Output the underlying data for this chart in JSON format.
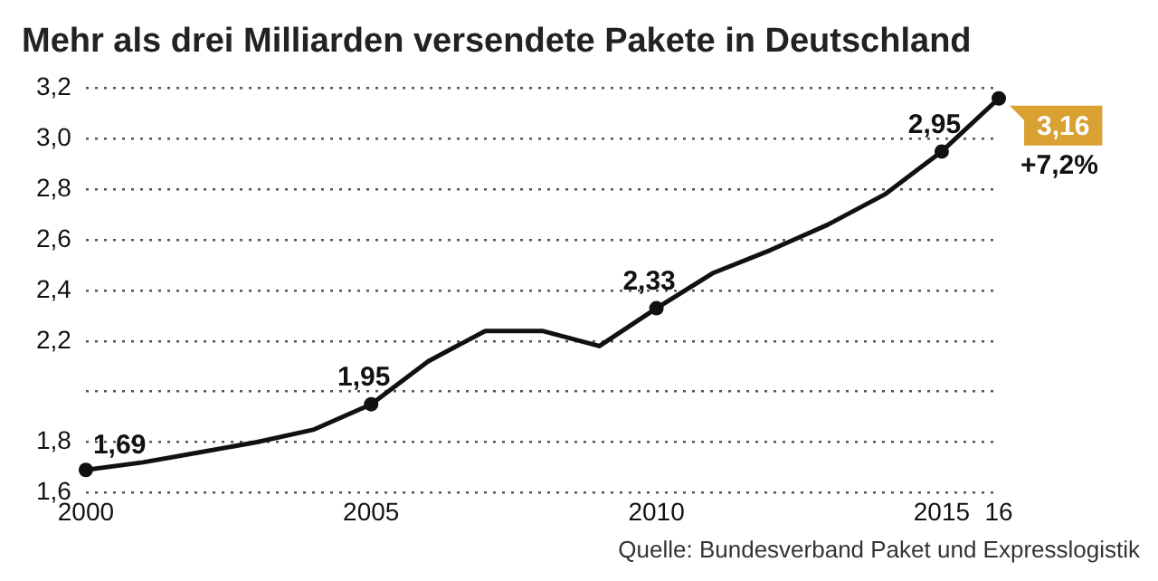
{
  "chart_data": {
    "type": "line",
    "title": "Mehr als drei Milliarden versendete Pakete in Deutschland",
    "x": [
      2000,
      2001,
      2002,
      2003,
      2004,
      2005,
      2006,
      2007,
      2008,
      2009,
      2010,
      2011,
      2012,
      2013,
      2014,
      2015,
      2016
    ],
    "series": [
      {
        "color": "#111111",
        "values": [
          1.69,
          1.72,
          1.76,
          1.8,
          1.85,
          1.95,
          2.12,
          2.24,
          2.24,
          2.18,
          2.33,
          2.47,
          2.56,
          2.66,
          2.78,
          2.95,
          3.16
        ],
        "value_labels": [
          "1,69",
          null,
          null,
          null,
          null,
          "1,95",
          null,
          null,
          null,
          null,
          "2,33",
          null,
          null,
          null,
          null,
          "2,95",
          "3,16"
        ]
      }
    ],
    "xlim": [
      2000,
      2016
    ],
    "xticks": [
      2000,
      2005,
      2010,
      {
        "value": 2015,
        "label": "2015"
      },
      {
        "value": 2016,
        "label": "16"
      }
    ],
    "ylim": [
      1.6,
      3.2
    ],
    "yticks": [
      {
        "value": 1.6,
        "label": "1,6"
      },
      {
        "value": 1.8,
        "label": "1,8"
      },
      {
        "value": 2.0,
        "label": null
      },
      {
        "value": 2.2,
        "label": "2,2"
      },
      {
        "value": 2.4,
        "label": "2,4"
      },
      {
        "value": 2.6,
        "label": "2,6"
      },
      {
        "value": 2.8,
        "label": "2,8"
      },
      {
        "value": 3.0,
        "label": "3,0"
      },
      {
        "value": 3.2,
        "label": "3,2"
      }
    ],
    "grid": "y",
    "legend": false,
    "line_style": "solid",
    "annotations": [
      {
        "text": "+7,2%",
        "x": 2016,
        "y": 3.16
      },
      "Quelle: Bundesverband Paket und Expresslogistik"
    ]
  }
}
